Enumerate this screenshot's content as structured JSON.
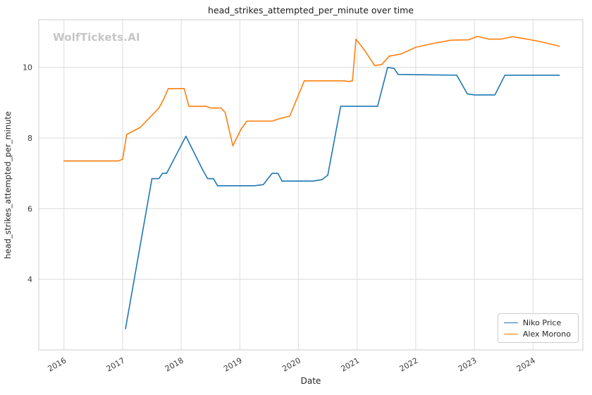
{
  "chart_data": {
    "type": "line",
    "title": "head_strikes_attempted_per_minute over time",
    "watermark": "WolfTickets.AI",
    "xlabel": "Date",
    "ylabel": "head_strikes_attempted_per_minute",
    "xlim": [
      2015.57,
      2024.85
    ],
    "ylim": [
      2.0,
      11.35
    ],
    "x_ticks": [
      2016,
      2017,
      2018,
      2019,
      2020,
      2021,
      2022,
      2023,
      2024
    ],
    "y_ticks": [
      4,
      6,
      8,
      10
    ],
    "grid": true,
    "legend_position": "lower right",
    "series": [
      {
        "name": "Niko Price",
        "color": "#1f77b4",
        "points": [
          [
            2017.05,
            2.6
          ],
          [
            2017.5,
            6.85
          ],
          [
            2017.62,
            6.85
          ],
          [
            2017.68,
            7.0
          ],
          [
            2017.75,
            7.0
          ],
          [
            2018.08,
            8.05
          ],
          [
            2018.35,
            7.15
          ],
          [
            2018.45,
            6.85
          ],
          [
            2018.55,
            6.85
          ],
          [
            2018.62,
            6.65
          ],
          [
            2019.25,
            6.65
          ],
          [
            2019.4,
            6.68
          ],
          [
            2019.55,
            7.0
          ],
          [
            2019.65,
            7.0
          ],
          [
            2019.72,
            6.78
          ],
          [
            2020.25,
            6.78
          ],
          [
            2020.4,
            6.82
          ],
          [
            2020.5,
            6.95
          ],
          [
            2020.72,
            8.9
          ],
          [
            2021.35,
            8.9
          ],
          [
            2021.52,
            10.0
          ],
          [
            2021.63,
            9.97
          ],
          [
            2021.7,
            9.8
          ],
          [
            2022.7,
            9.78
          ],
          [
            2022.88,
            9.25
          ],
          [
            2023.0,
            9.22
          ],
          [
            2023.35,
            9.22
          ],
          [
            2023.52,
            9.78
          ],
          [
            2024.45,
            9.78
          ]
        ]
      },
      {
        "name": "Alex Morono",
        "color": "#ff7f0e",
        "points": [
          [
            2016.0,
            7.35
          ],
          [
            2016.93,
            7.35
          ],
          [
            2017.0,
            7.4
          ],
          [
            2017.07,
            8.1
          ],
          [
            2017.3,
            8.3
          ],
          [
            2017.62,
            8.85
          ],
          [
            2017.7,
            9.1
          ],
          [
            2017.78,
            9.4
          ],
          [
            2018.05,
            9.4
          ],
          [
            2018.13,
            8.9
          ],
          [
            2018.42,
            8.9
          ],
          [
            2018.5,
            8.85
          ],
          [
            2018.68,
            8.85
          ],
          [
            2018.75,
            8.72
          ],
          [
            2018.88,
            7.78
          ],
          [
            2019.02,
            8.25
          ],
          [
            2019.12,
            8.48
          ],
          [
            2019.55,
            8.48
          ],
          [
            2019.68,
            8.55
          ],
          [
            2019.85,
            8.62
          ],
          [
            2020.1,
            9.62
          ],
          [
            2020.78,
            9.62
          ],
          [
            2020.85,
            9.6
          ],
          [
            2020.92,
            9.62
          ],
          [
            2020.98,
            10.8
          ],
          [
            2021.12,
            10.5
          ],
          [
            2021.3,
            10.05
          ],
          [
            2021.42,
            10.08
          ],
          [
            2021.55,
            10.32
          ],
          [
            2021.75,
            10.38
          ],
          [
            2022.0,
            10.57
          ],
          [
            2022.3,
            10.68
          ],
          [
            2022.6,
            10.77
          ],
          [
            2022.9,
            10.78
          ],
          [
            2023.05,
            10.88
          ],
          [
            2023.25,
            10.8
          ],
          [
            2023.45,
            10.8
          ],
          [
            2023.65,
            10.87
          ],
          [
            2023.9,
            10.8
          ],
          [
            2024.15,
            10.72
          ],
          [
            2024.45,
            10.6
          ]
        ]
      }
    ]
  }
}
